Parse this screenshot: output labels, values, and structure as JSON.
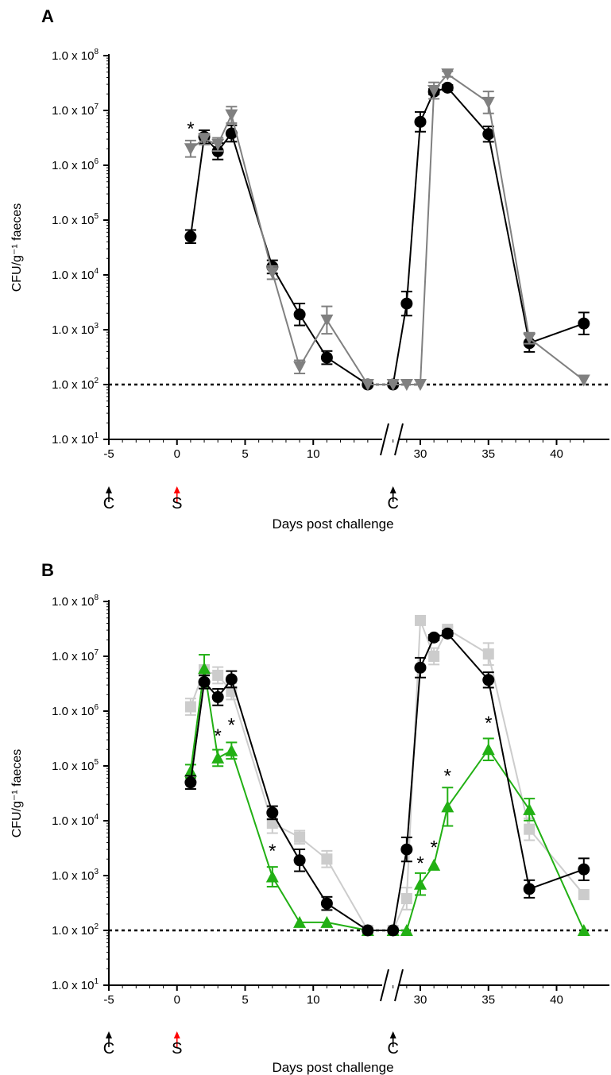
{
  "chart_data": [
    {
      "panel": "A",
      "type": "line",
      "xlabel": "Days post challenge",
      "ylabel": "CFU/g⁻¹ faeces",
      "yscale": "log",
      "ylim": [
        10,
        100000000
      ],
      "x_ticks": [
        "-5",
        "0",
        "5",
        "10",
        "30",
        "35",
        "40"
      ],
      "y_ticks": [
        {
          "value": 100000000,
          "mant": "1.0 x 10",
          "exp": "8"
        },
        {
          "value": 10000000,
          "mant": "1.0 x 10",
          "exp": "7"
        },
        {
          "value": 1000000,
          "mant": "1.0 x 10",
          "exp": "6"
        },
        {
          "value": 100000,
          "mant": "1.0 x 10",
          "exp": "5"
        },
        {
          "value": 10000,
          "mant": "1.0 x 10",
          "exp": "4"
        },
        {
          "value": 1000,
          "mant": "1.0 x 10",
          "exp": "3"
        },
        {
          "value": 100,
          "mant": "1.0 x 10",
          "exp": "2"
        },
        {
          "value": 10,
          "mant": "1.0 x 10",
          "exp": "1"
        }
      ],
      "detection_limit": 100,
      "axis_break": "between day 14 and day 28",
      "markers": [
        {
          "day": -5,
          "label": "C",
          "color": "#000000"
        },
        {
          "day": 0,
          "label": "S",
          "color": "#ff0000"
        },
        {
          "day": 28,
          "label": "C",
          "color": "#000000"
        }
      ],
      "significance": [
        {
          "day": 1,
          "y": 5000000,
          "label": "*"
        }
      ],
      "series": [
        {
          "marker": "circle",
          "color": "#000000",
          "x": [
            1,
            2,
            3,
            4,
            7,
            9,
            11,
            14,
            28,
            29,
            30,
            31,
            32,
            35,
            38,
            42
          ],
          "y": [
            50000,
            3300000,
            1800000,
            3800000,
            14000,
            1900,
            310,
            100,
            100,
            3000,
            6200000,
            22000000,
            26000000,
            3700000,
            570,
            1300
          ],
          "err": [
            0.12,
            0.12,
            0.15,
            0.15,
            0.12,
            0.2,
            0.12,
            0,
            0,
            0.22,
            0.18,
            0.05,
            0.05,
            0.14,
            0.16,
            0.2
          ]
        },
        {
          "marker": "triangle-down",
          "color": "#808080",
          "x": [
            1,
            2,
            3,
            4,
            7,
            9,
            11,
            14,
            28,
            29,
            30,
            31,
            32,
            35,
            38,
            42
          ],
          "y": [
            2000000,
            3000000,
            2400000,
            8300000,
            11000,
            210,
            1500,
            100,
            100,
            100,
            100,
            23000000,
            46000000,
            14000000,
            700,
            120
          ],
          "err": [
            0.15,
            0.1,
            0.12,
            0.15,
            0.12,
            0.12,
            0.25,
            0,
            0,
            0,
            0,
            0.15,
            0.05,
            0.2,
            0.1,
            0
          ]
        }
      ]
    },
    {
      "panel": "B",
      "type": "line",
      "xlabel": "Days post challenge",
      "ylabel": "CFU/g⁻¹ faeces",
      "yscale": "log",
      "ylim": [
        10,
        100000000
      ],
      "x_ticks": [
        "-5",
        "0",
        "5",
        "10",
        "30",
        "35",
        "40"
      ],
      "y_ticks": [
        {
          "value": 100000000,
          "mant": "1.0 x 10",
          "exp": "8"
        },
        {
          "value": 10000000,
          "mant": "1.0 x 10",
          "exp": "7"
        },
        {
          "value": 1000000,
          "mant": "1.0 x 10",
          "exp": "6"
        },
        {
          "value": 100000,
          "mant": "1.0 x 10",
          "exp": "5"
        },
        {
          "value": 10000,
          "mant": "1.0 x 10",
          "exp": "4"
        },
        {
          "value": 1000,
          "mant": "1.0 x 10",
          "exp": "3"
        },
        {
          "value": 100,
          "mant": "1.0 x 10",
          "exp": "2"
        },
        {
          "value": 10,
          "mant": "1.0 x 10",
          "exp": "1"
        }
      ],
      "detection_limit": 100,
      "axis_break": "between day 14 and day 28",
      "markers": [
        {
          "day": -5,
          "label": "C",
          "color": "#000000"
        },
        {
          "day": 0,
          "label": "S",
          "color": "#ff0000"
        },
        {
          "day": 28,
          "label": "C",
          "color": "#000000"
        }
      ],
      "significance": [
        {
          "day": 3,
          "y": 380000,
          "label": "*"
        },
        {
          "day": 4,
          "y": 600000,
          "label": "*"
        },
        {
          "day": 7,
          "y": 3000,
          "label": "*"
        },
        {
          "day": 30,
          "y": 1800,
          "label": "*"
        },
        {
          "day": 31,
          "y": 3500,
          "label": "*"
        },
        {
          "day": 32,
          "y": 70000,
          "label": "*"
        },
        {
          "day": 35,
          "y": 650000,
          "label": "*"
        }
      ],
      "series": [
        {
          "marker": "square",
          "color": "#cccccc",
          "x": [
            1,
            2,
            3,
            4,
            7,
            9,
            11,
            14,
            28,
            29,
            30,
            31,
            32,
            35,
            38,
            42
          ],
          "y": [
            1200000,
            5500000,
            4500000,
            2300000,
            9000,
            5000,
            2000,
            100,
            100,
            380,
            45000000,
            10000000,
            31000000,
            11000000,
            7000,
            450
          ],
          "err": [
            0.15,
            0.1,
            0.15,
            0.15,
            0.18,
            0.12,
            0.15,
            0,
            0,
            0.2,
            0.05,
            0.15,
            0.05,
            0.2,
            0.2,
            0
          ]
        },
        {
          "marker": "triangle",
          "color": "#22b014",
          "x": [
            1,
            2,
            3,
            4,
            7,
            9,
            11,
            14,
            28,
            29,
            30,
            31,
            32,
            35,
            38,
            42
          ],
          "y": [
            80000,
            6000000,
            140000,
            190000,
            950,
            140,
            140,
            100,
            100,
            100,
            700,
            1550,
            18000,
            200000,
            16000,
            100
          ],
          "err": [
            0.12,
            0.25,
            0.15,
            0.15,
            0.18,
            0,
            0,
            0,
            0,
            0,
            0.2,
            0,
            0.35,
            0.2,
            0.2,
            0
          ]
        },
        {
          "marker": "circle",
          "color": "#000000",
          "x": [
            1,
            2,
            3,
            4,
            7,
            9,
            11,
            14,
            28,
            29,
            30,
            31,
            32,
            35,
            38,
            42
          ],
          "y": [
            50000,
            3400000,
            1800000,
            3800000,
            14000,
            1900,
            310,
            100,
            100,
            3000,
            6200000,
            22000000,
            26000000,
            3700000,
            570,
            1300
          ],
          "err": [
            0.12,
            0.12,
            0.15,
            0.15,
            0.12,
            0.2,
            0.12,
            0,
            0,
            0.22,
            0.18,
            0.05,
            0.05,
            0.14,
            0.16,
            0.2
          ]
        }
      ]
    }
  ]
}
